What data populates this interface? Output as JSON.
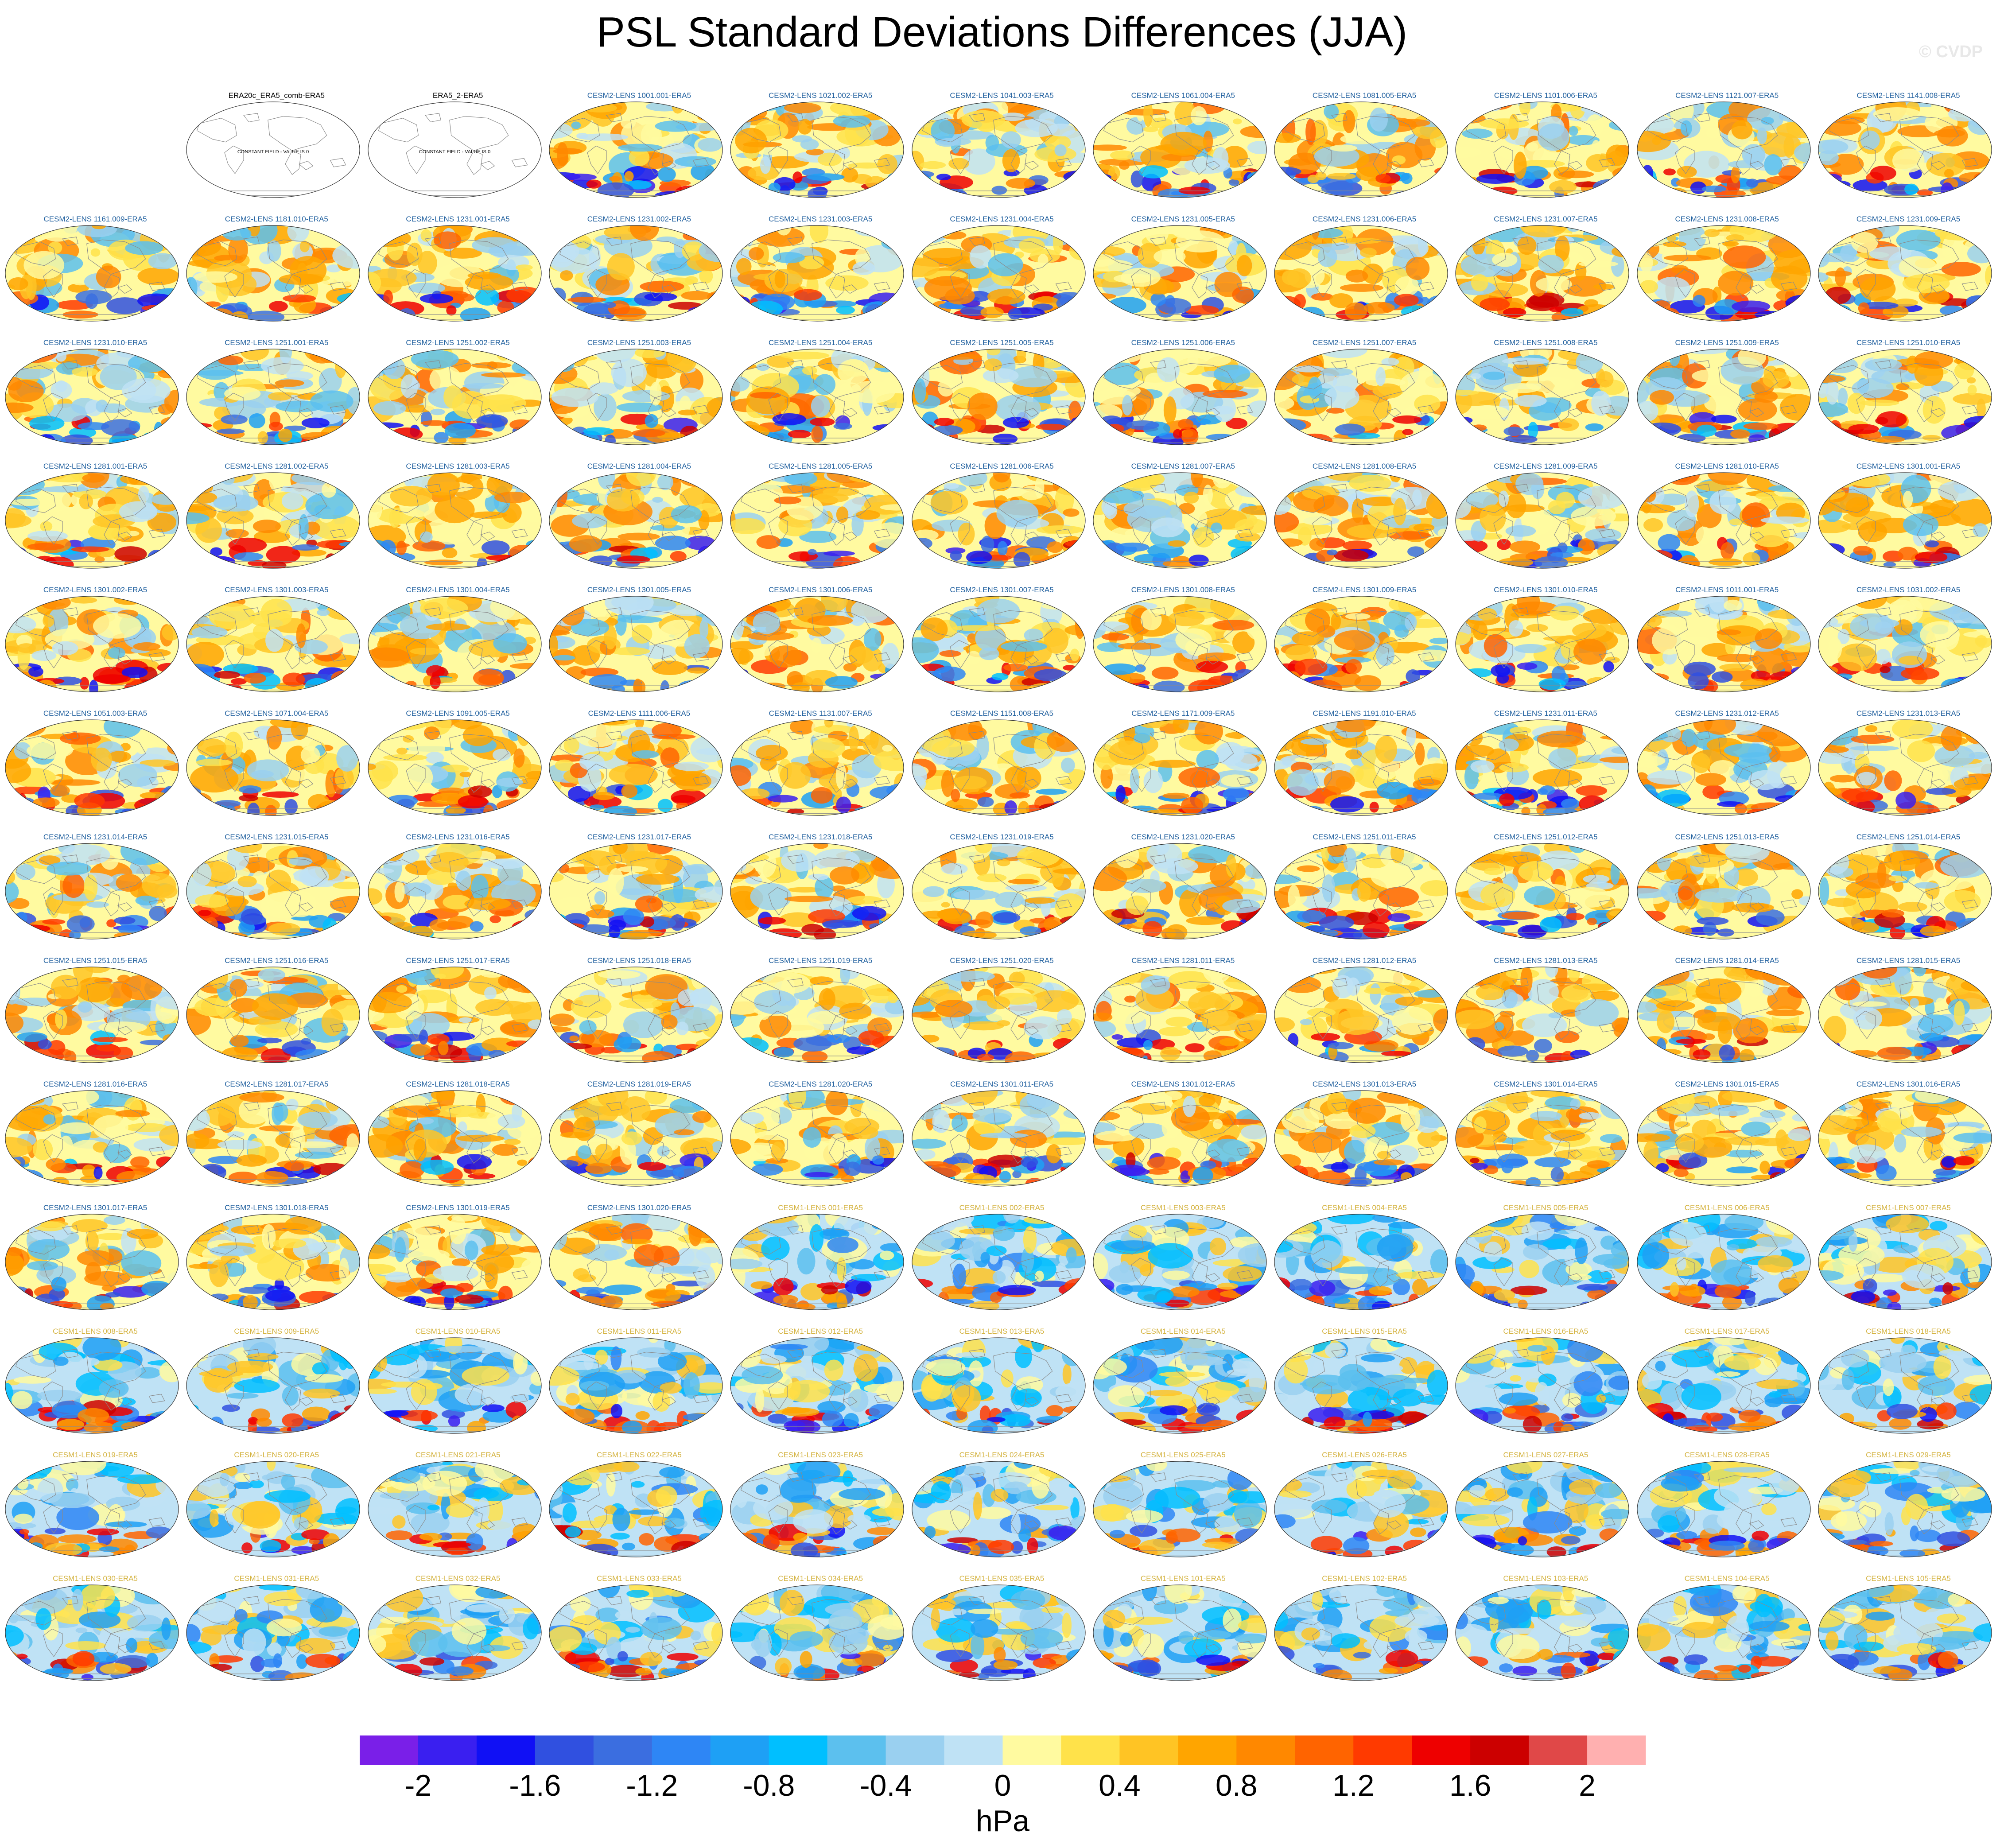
{
  "title": "PSL Standard Deviations Differences (JJA)",
  "watermark": "© CVDP",
  "colors": {
    "title_cesm2": "#1f5f9e",
    "title_cesm1": "#d4b340",
    "title_obs": "#000000",
    "land_outline": "#8a8a8a",
    "map_border": "#333333"
  },
  "chart_data": {
    "type": "heatmap",
    "projection": "robinson",
    "colorbar": {
      "label": "hPa",
      "levels": [
        -2.0,
        -1.8,
        -1.6,
        -1.4,
        -1.2,
        -1.0,
        -0.8,
        -0.6,
        -0.4,
        -0.2,
        0,
        0.2,
        0.4,
        0.6,
        0.8,
        1.0,
        1.2,
        1.4,
        1.6,
        1.8,
        2.0
      ],
      "tick_labels": [
        "-2",
        "-1.6",
        "-1.2",
        "-0.8",
        "-0.4",
        "0",
        "0.4",
        "0.8",
        "1.2",
        "1.6",
        "2"
      ],
      "colors": [
        "#7a1fe8",
        "#3a1ff0",
        "#1010f5",
        "#3050e0",
        "#3b6ee0",
        "#2e86f5",
        "#1ea0f5",
        "#00bfff",
        "#5cc0ee",
        "#9ad0f0",
        "#bfe2f5",
        "#fffaa0",
        "#ffe24a",
        "#ffc424",
        "#ffa500",
        "#ff8800",
        "#ff6400",
        "#ff3a00",
        "#ee0000",
        "#cc0000",
        "#e04848",
        "#ffb0b0"
      ]
    },
    "empty_panels": [
      {
        "title": "ERA20c_ERA5_comb-ERA5",
        "note": "CONSTANT FIELD - VALUE IS 0"
      },
      {
        "title": "ERA5_2-ERA5",
        "note": "CONSTANT FIELD - VALUE IS 0"
      }
    ],
    "cesm2_panels": [
      "CESM2-LENS 1001.001-ERA5",
      "CESM2-LENS 1021.002-ERA5",
      "CESM2-LENS 1041.003-ERA5",
      "CESM2-LENS 1061.004-ERA5",
      "CESM2-LENS 1081.005-ERA5",
      "CESM2-LENS 1101.006-ERA5",
      "CESM2-LENS 1121.007-ERA5",
      "CESM2-LENS 1141.008-ERA5",
      "CESM2-LENS 1161.009-ERA5",
      "CESM2-LENS 1181.010-ERA5",
      "CESM2-LENS 1231.001-ERA5",
      "CESM2-LENS 1231.002-ERA5",
      "CESM2-LENS 1231.003-ERA5",
      "CESM2-LENS 1231.004-ERA5",
      "CESM2-LENS 1231.005-ERA5",
      "CESM2-LENS 1231.006-ERA5",
      "CESM2-LENS 1231.007-ERA5",
      "CESM2-LENS 1231.008-ERA5",
      "CESM2-LENS 1231.009-ERA5",
      "CESM2-LENS 1231.010-ERA5",
      "CESM2-LENS 1251.001-ERA5",
      "CESM2-LENS 1251.002-ERA5",
      "CESM2-LENS 1251.003-ERA5",
      "CESM2-LENS 1251.004-ERA5",
      "CESM2-LENS 1251.005-ERA5",
      "CESM2-LENS 1251.006-ERA5",
      "CESM2-LENS 1251.007-ERA5",
      "CESM2-LENS 1251.008-ERA5",
      "CESM2-LENS 1251.009-ERA5",
      "CESM2-LENS 1251.010-ERA5",
      "CESM2-LENS 1281.001-ERA5",
      "CESM2-LENS 1281.002-ERA5",
      "CESM2-LENS 1281.003-ERA5",
      "CESM2-LENS 1281.004-ERA5",
      "CESM2-LENS 1281.005-ERA5",
      "CESM2-LENS 1281.006-ERA5",
      "CESM2-LENS 1281.007-ERA5",
      "CESM2-LENS 1281.008-ERA5",
      "CESM2-LENS 1281.009-ERA5",
      "CESM2-LENS 1281.010-ERA5",
      "CESM2-LENS 1301.001-ERA5",
      "CESM2-LENS 1301.002-ERA5",
      "CESM2-LENS 1301.003-ERA5",
      "CESM2-LENS 1301.004-ERA5",
      "CESM2-LENS 1301.005-ERA5",
      "CESM2-LENS 1301.006-ERA5",
      "CESM2-LENS 1301.007-ERA5",
      "CESM2-LENS 1301.008-ERA5",
      "CESM2-LENS 1301.009-ERA5",
      "CESM2-LENS 1301.010-ERA5",
      "CESM2-LENS 1011.001-ERA5",
      "CESM2-LENS 1031.002-ERA5",
      "CESM2-LENS 1051.003-ERA5",
      "CESM2-LENS 1071.004-ERA5",
      "CESM2-LENS 1091.005-ERA5",
      "CESM2-LENS 1111.006-ERA5",
      "CESM2-LENS 1131.007-ERA5",
      "CESM2-LENS 1151.008-ERA5",
      "CESM2-LENS 1171.009-ERA5",
      "CESM2-LENS 1191.010-ERA5",
      "CESM2-LENS 1231.011-ERA5",
      "CESM2-LENS 1231.012-ERA5",
      "CESM2-LENS 1231.013-ERA5",
      "CESM2-LENS 1231.014-ERA5",
      "CESM2-LENS 1231.015-ERA5",
      "CESM2-LENS 1231.016-ERA5",
      "CESM2-LENS 1231.017-ERA5",
      "CESM2-LENS 1231.018-ERA5",
      "CESM2-LENS 1231.019-ERA5",
      "CESM2-LENS 1231.020-ERA5",
      "CESM2-LENS 1251.011-ERA5",
      "CESM2-LENS 1251.012-ERA5",
      "CESM2-LENS 1251.013-ERA5",
      "CESM2-LENS 1251.014-ERA5",
      "CESM2-LENS 1251.015-ERA5",
      "CESM2-LENS 1251.016-ERA5",
      "CESM2-LENS 1251.017-ERA5",
      "CESM2-LENS 1251.018-ERA5",
      "CESM2-LENS 1251.019-ERA5",
      "CESM2-LENS 1251.020-ERA5",
      "CESM2-LENS 1281.011-ERA5",
      "CESM2-LENS 1281.012-ERA5",
      "CESM2-LENS 1281.013-ERA5",
      "CESM2-LENS 1281.014-ERA5",
      "CESM2-LENS 1281.015-ERA5",
      "CESM2-LENS 1281.016-ERA5",
      "CESM2-LENS 1281.017-ERA5",
      "CESM2-LENS 1281.018-ERA5",
      "CESM2-LENS 1281.019-ERA5",
      "CESM2-LENS 1281.020-ERA5",
      "CESM2-LENS 1301.011-ERA5",
      "CESM2-LENS 1301.012-ERA5",
      "CESM2-LENS 1301.013-ERA5",
      "CESM2-LENS 1301.014-ERA5",
      "CESM2-LENS 1301.015-ERA5",
      "CESM2-LENS 1301.016-ERA5",
      "CESM2-LENS 1301.017-ERA5",
      "CESM2-LENS 1301.018-ERA5",
      "CESM2-LENS 1301.019-ERA5",
      "CESM2-LENS 1301.020-ERA5"
    ],
    "cesm1_panels": [
      "CESM1-LENS 001-ERA5",
      "CESM1-LENS 002-ERA5",
      "CESM1-LENS 003-ERA5",
      "CESM1-LENS 004-ERA5",
      "CESM1-LENS 005-ERA5",
      "CESM1-LENS 006-ERA5",
      "CESM1-LENS 007-ERA5",
      "CESM1-LENS 008-ERA5",
      "CESM1-LENS 009-ERA5",
      "CESM1-LENS 010-ERA5",
      "CESM1-LENS 011-ERA5",
      "CESM1-LENS 012-ERA5",
      "CESM1-LENS 013-ERA5",
      "CESM1-LENS 014-ERA5",
      "CESM1-LENS 015-ERA5",
      "CESM1-LENS 016-ERA5",
      "CESM1-LENS 017-ERA5",
      "CESM1-LENS 018-ERA5",
      "CESM1-LENS 019-ERA5",
      "CESM1-LENS 020-ERA5",
      "CESM1-LENS 021-ERA5",
      "CESM1-LENS 022-ERA5",
      "CESM1-LENS 023-ERA5",
      "CESM1-LENS 024-ERA5",
      "CESM1-LENS 025-ERA5",
      "CESM1-LENS 026-ERA5",
      "CESM1-LENS 027-ERA5",
      "CESM1-LENS 028-ERA5",
      "CESM1-LENS 029-ERA5",
      "CESM1-LENS 030-ERA5",
      "CESM1-LENS 031-ERA5",
      "CESM1-LENS 032-ERA5",
      "CESM1-LENS 033-ERA5",
      "CESM1-LENS 034-ERA5",
      "CESM1-LENS 035-ERA5",
      "CESM1-LENS 101-ERA5",
      "CESM1-LENS 102-ERA5",
      "CESM1-LENS 103-ERA5",
      "CESM1-LENS 104-ERA5",
      "CESM1-LENS 105-ERA5"
    ]
  }
}
